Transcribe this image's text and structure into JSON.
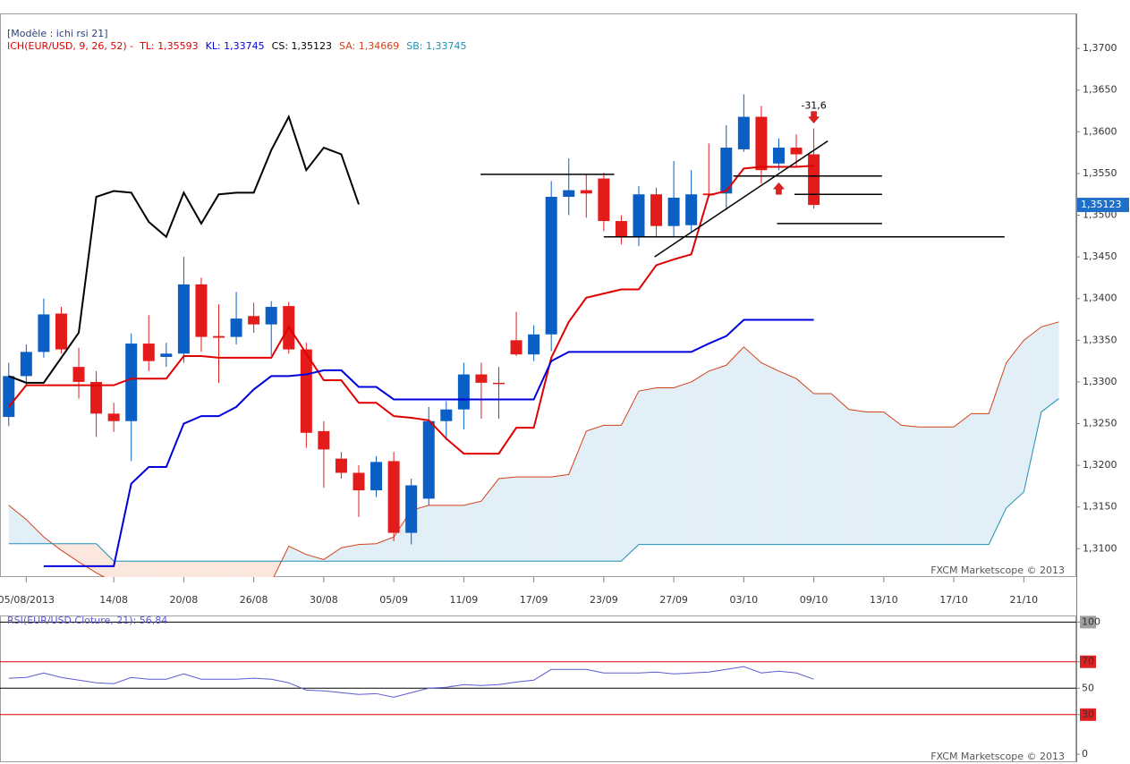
{
  "chart_data": [
    {
      "type": "candlestick",
      "subtitle": "[Modèle : ichi rsi 21]",
      "legend_title": "ICH(EUR/USD, 9, 26, 52) -",
      "legend_title_color": "#e00000",
      "watermark": "FXCM Marketscope © 2013",
      "xlim": [
        -0.5,
        61
      ],
      "xticks": [
        {
          "value": 1,
          "label": "05/08/2013"
        },
        {
          "value": 6,
          "label": "14/08"
        },
        {
          "value": 10,
          "label": "20/08"
        },
        {
          "value": 14,
          "label": "26/08"
        },
        {
          "value": 18,
          "label": "30/08"
        },
        {
          "value": 22,
          "label": "05/09"
        },
        {
          "value": 26,
          "label": "11/09"
        },
        {
          "value": 30,
          "label": "17/09"
        },
        {
          "value": 34,
          "label": "23/09"
        },
        {
          "value": 38,
          "label": "27/09"
        },
        {
          "value": 42,
          "label": "03/10"
        },
        {
          "value": 46,
          "label": "09/10"
        },
        {
          "value": 50,
          "label": "13/10"
        },
        {
          "value": 54,
          "label": "17/10"
        },
        {
          "value": 58,
          "label": "21/10"
        }
      ],
      "ylim": [
        1.3066,
        1.3742
      ],
      "yticks": [
        {
          "value": 1.31,
          "label": "1,3100"
        },
        {
          "value": 1.315,
          "label": "1,3150"
        },
        {
          "value": 1.32,
          "label": "1,3200"
        },
        {
          "value": 1.325,
          "label": "1,3250"
        },
        {
          "value": 1.33,
          "label": "1,3300"
        },
        {
          "value": 1.335,
          "label": "1,3350"
        },
        {
          "value": 1.34,
          "label": "1,3400"
        },
        {
          "value": 1.345,
          "label": "1,3450"
        },
        {
          "value": 1.35,
          "label": "1,3500"
        },
        {
          "value": 1.355,
          "label": "1,3550"
        },
        {
          "value": 1.36,
          "label": "1,3600"
        },
        {
          "value": 1.365,
          "label": "1,3650"
        },
        {
          "value": 1.37,
          "label": "1,3700"
        }
      ],
      "up_color": "#0a5ec4",
      "down_color": "#e31b1b",
      "open": [
        1.3258,
        1.3307,
        1.3336,
        1.3382,
        1.3318,
        1.33,
        1.3262,
        1.3253,
        1.3346,
        1.333,
        1.3334,
        1.3417,
        1.3355,
        1.3354,
        1.3379,
        1.3369,
        1.3391,
        1.3339,
        1.3241,
        1.3208,
        1.3191,
        1.317,
        1.3205,
        1.3119,
        1.316,
        1.3253,
        1.3267,
        1.3309,
        1.3299,
        1.335,
        1.3333,
        1.3357,
        1.3522,
        1.353,
        1.3544,
        1.3493,
        1.3474,
        1.3525,
        1.3487,
        1.3488,
        1.3526,
        1.3526,
        1.3579,
        1.3618,
        1.3562,
        1.3581,
        1.3573
      ],
      "high": [
        1.3323,
        1.3345,
        1.34,
        1.339,
        1.3341,
        1.3313,
        1.3275,
        1.3358,
        1.338,
        1.3347,
        1.345,
        1.3425,
        1.3393,
        1.3408,
        1.3395,
        1.3397,
        1.3396,
        1.3347,
        1.3253,
        1.3216,
        1.32,
        1.3211,
        1.3216,
        1.3184,
        1.327,
        1.3277,
        1.3323,
        1.3323,
        1.3318,
        1.3384,
        1.3368,
        1.3541,
        1.3568,
        1.3549,
        1.3551,
        1.35,
        1.3535,
        1.3533,
        1.3565,
        1.3554,
        1.3586,
        1.3608,
        1.3645,
        1.3631,
        1.3592,
        1.3597,
        1.3604
      ],
      "low": [
        1.3247,
        1.3296,
        1.3329,
        1.3334,
        1.328,
        1.3234,
        1.324,
        1.3205,
        1.3313,
        1.3318,
        1.3323,
        1.3336,
        1.3299,
        1.3345,
        1.3359,
        1.3332,
        1.3334,
        1.3221,
        1.3173,
        1.3184,
        1.3138,
        1.3162,
        1.3109,
        1.3105,
        1.3152,
        1.323,
        1.3243,
        1.3256,
        1.3256,
        1.3331,
        1.3325,
        1.3337,
        1.35,
        1.3497,
        1.3481,
        1.3465,
        1.3463,
        1.3474,
        1.3474,
        1.3479,
        1.3522,
        1.3506,
        1.3576,
        1.3538,
        1.3554,
        1.3559,
        1.3508
      ],
      "close": [
        1.3307,
        1.3336,
        1.3381,
        1.3339,
        1.33,
        1.3262,
        1.3253,
        1.3346,
        1.3325,
        1.3334,
        1.3417,
        1.3354,
        1.3353,
        1.3376,
        1.3369,
        1.339,
        1.3339,
        1.3239,
        1.3219,
        1.3191,
        1.317,
        1.3204,
        1.3119,
        1.3176,
        1.3253,
        1.3267,
        1.3309,
        1.3299,
        1.3298,
        1.3333,
        1.3357,
        1.3522,
        1.353,
        1.3526,
        1.3493,
        1.3474,
        1.3525,
        1.3487,
        1.3521,
        1.3525,
        1.3524,
        1.3581,
        1.3618,
        1.3554,
        1.3581,
        1.3573,
        1.35123
      ],
      "series": [
        {
          "name": "TL: 1,35593",
          "color": "#e00000",
          "width": 2,
          "values": [
            1.327,
            1.3296,
            1.3296,
            1.3296,
            1.3296,
            1.3296,
            1.3296,
            1.3304,
            1.3304,
            1.3304,
            1.3331,
            1.3331,
            1.3329,
            1.3329,
            1.3329,
            1.3329,
            1.3366,
            1.3334,
            1.3302,
            1.3302,
            1.3275,
            1.3275,
            1.3259,
            1.3257,
            1.3254,
            1.3232,
            1.3214,
            1.3214,
            1.3214,
            1.3245,
            1.3245,
            1.3329,
            1.3372,
            1.3401,
            1.3406,
            1.3411,
            1.3411,
            1.344,
            1.3447,
            1.3453,
            1.3524,
            1.3529,
            1.3556,
            1.3558,
            1.3558,
            1.3558,
            1.35593
          ]
        },
        {
          "name": "KL: 1,33745",
          "color": "#0000dd",
          "width": 2,
          "values": [
            null,
            null,
            1.3079,
            1.3079,
            1.3079,
            1.3079,
            1.3079,
            1.3178,
            1.3198,
            1.3198,
            1.325,
            1.3259,
            1.3259,
            1.327,
            1.3291,
            1.3307,
            1.3307,
            1.3309,
            1.3314,
            1.3314,
            1.3294,
            1.3294,
            1.3279,
            1.3279,
            1.3279,
            1.3279,
            1.3279,
            1.3279,
            1.3279,
            1.3279,
            1.3279,
            1.3325,
            1.3336,
            1.3336,
            1.3336,
            1.3336,
            1.3336,
            1.3336,
            1.3336,
            1.3336,
            1.3346,
            1.3355,
            1.33745,
            1.33745,
            1.33745,
            1.33745,
            1.33745
          ]
        },
        {
          "name": "CS: 1,35123",
          "color": "#000000",
          "width": 2,
          "values": [
            1.3307,
            1.3299,
            1.3299,
            1.3329,
            1.3359,
            1.3522,
            1.3529,
            1.3527,
            1.3492,
            1.3474,
            1.3527,
            1.349,
            1.3525,
            1.3527,
            1.3527,
            1.3578,
            1.3618,
            1.3554,
            1.3581,
            1.3573,
            1.3513
          ]
        },
        {
          "name": "SA: 1,34669",
          "color": "#d2421a",
          "width": 1,
          "cloud": "upper",
          "values": [
            1.3152,
            1.3135,
            1.3114,
            1.3098,
            1.3084,
            1.3071,
            1.306,
            1.3055,
            1.3055,
            1.3055,
            1.3055,
            1.3055,
            1.3055,
            1.3055,
            1.3055,
            1.306,
            1.3103,
            1.3093,
            1.3087,
            1.3101,
            1.3105,
            1.3106,
            1.3114,
            1.3146,
            1.3152,
            1.3152,
            1.3152,
            1.3157,
            1.3184,
            1.3186,
            1.3186,
            1.3186,
            1.3189,
            1.3241,
            1.3248,
            1.3248,
            1.3289,
            1.3293,
            1.3293,
            1.33,
            1.3313,
            1.332,
            1.3342,
            1.3323,
            1.3313,
            1.3304,
            1.3286,
            1.3286,
            1.3267,
            1.3264,
            1.3264,
            1.3248,
            1.3246,
            1.3246,
            1.3246,
            1.3262,
            1.3262,
            1.3323,
            1.335,
            1.3366,
            1.3372
          ]
        },
        {
          "name": "SB: 1,33745",
          "color": "#1d8fb5",
          "width": 1,
          "cloud": "lower",
          "values": [
            1.3106,
            1.3106,
            1.3106,
            1.3106,
            1.3106,
            1.3106,
            1.3085,
            1.3085,
            1.3085,
            1.3085,
            1.3085,
            1.3085,
            1.3085,
            1.3085,
            1.3085,
            1.3085,
            1.3085,
            1.3085,
            1.3085,
            1.3085,
            1.3085,
            1.3085,
            1.3085,
            1.3085,
            1.3085,
            1.3085,
            1.3085,
            1.3085,
            1.3085,
            1.3085,
            1.3085,
            1.3085,
            1.3085,
            1.3085,
            1.3085,
            1.3085,
            1.3105,
            1.3105,
            1.3105,
            1.3105,
            1.3105,
            1.3105,
            1.3105,
            1.3105,
            1.3105,
            1.3105,
            1.3105,
            1.3105,
            1.3105,
            1.3105,
            1.3105,
            1.3105,
            1.3105,
            1.3105,
            1.3105,
            1.3105,
            1.3105,
            1.3149,
            1.3168,
            1.3264,
            1.328
          ]
        }
      ],
      "cloud_colors": {
        "above": "#e3eff7",
        "below": "#fbe7dd"
      },
      "last_price": {
        "value": 1.35123,
        "label": "1,35123",
        "color": "#1d6fc9"
      },
      "trend_lines": [
        {
          "x": [
            26.96,
            34.6
          ],
          "y": [
            1.3549,
            1.3549
          ]
        },
        {
          "x": [
            41.4,
            49.9
          ],
          "y": [
            1.3547,
            1.3547
          ]
        },
        {
          "x": [
            44.9,
            49.9
          ],
          "y": [
            1.3525,
            1.3525
          ]
        },
        {
          "x": [
            43.9,
            49.9
          ],
          "y": [
            1.349,
            1.349
          ]
        },
        {
          "x": [
            34.0,
            56.9
          ],
          "y": [
            1.3474,
            1.3474
          ]
        },
        {
          "x": [
            36.9,
            46.8
          ],
          "y": [
            1.345,
            1.3589
          ]
        }
      ],
      "signals": [
        {
          "index": 44,
          "direction": "up"
        },
        {
          "index": 46,
          "direction": "down",
          "label": "-31,6"
        }
      ],
      "signal_color": "#e02020"
    },
    {
      "type": "line",
      "legend": "RSI(EUR/USD.Cloture, 21): 56,84",
      "watermark": "FXCM Marketscope © 2013",
      "color": "#5a5ad0",
      "ylim": [
        -6,
        105
      ],
      "yticks": [
        0,
        30,
        50,
        70,
        100
      ],
      "tick_backgrounds": [
        "none",
        "#e02020",
        "none",
        "#e02020",
        "#a0a0a0"
      ],
      "grid_colors": [
        "none",
        "#d00000",
        "#000000",
        "#d00000",
        "#000000"
      ],
      "values": [
        57.5,
        58.1,
        61.5,
        58.1,
        56.1,
        54.1,
        53.4,
        58.1,
        56.8,
        56.8,
        60.8,
        56.8,
        56.8,
        56.8,
        57.5,
        56.8,
        54.1,
        48.6,
        48.0,
        46.6,
        45.3,
        45.9,
        43.2,
        46.6,
        50.0,
        50.7,
        52.7,
        52.0,
        52.7,
        54.7,
        56.1,
        64.2,
        64.2,
        64.2,
        61.5,
        61.5,
        61.5,
        62.2,
        60.8,
        61.5,
        62.2,
        64.2,
        66.3,
        61.5,
        62.9,
        61.5,
        56.84
      ]
    }
  ]
}
